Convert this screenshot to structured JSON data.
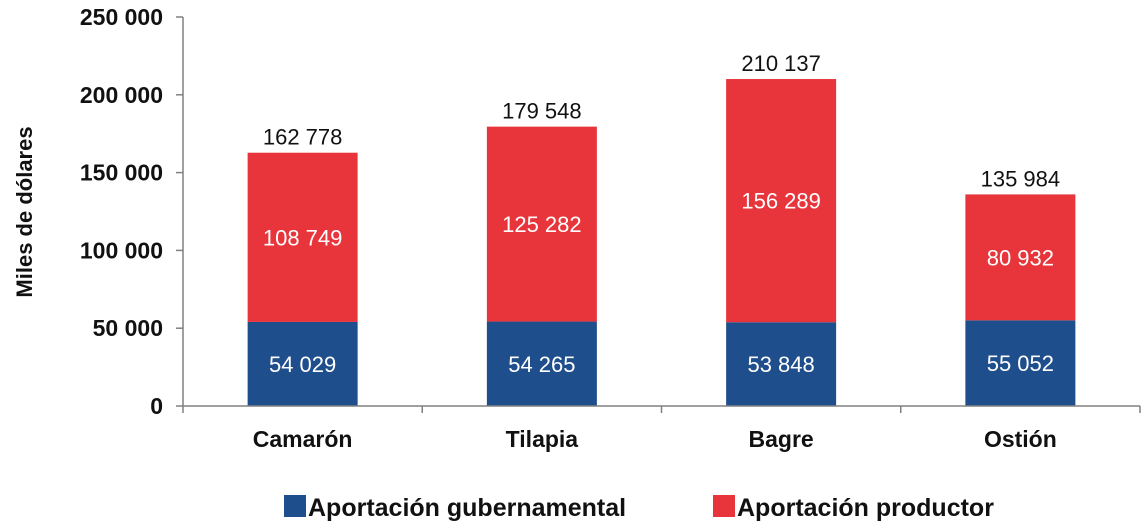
{
  "chart_data": {
    "type": "bar",
    "stacked": true,
    "categories": [
      "Camarón",
      "Tilapia",
      "Bagre",
      "Ostión"
    ],
    "series": [
      {
        "name": "Aportación gubernamental",
        "color": "#1f4e8c",
        "values": [
          54029,
          54265,
          53848,
          55052
        ],
        "labels": [
          "54 029",
          "54 265",
          "53 848",
          "55 052"
        ]
      },
      {
        "name": "Aportación productor",
        "color": "#e8353b",
        "values": [
          108749,
          125282,
          156289,
          80932
        ],
        "labels": [
          "108 749",
          "125 282",
          "156 289",
          "80 932"
        ]
      }
    ],
    "totals": [
      162778,
      179548,
      210137,
      135984
    ],
    "total_labels": [
      "162 778",
      "179 548",
      "210 137",
      "135 984"
    ],
    "ylabel": "Miles de dólares",
    "xlabel": "",
    "ylim": [
      0,
      250000
    ],
    "yticks": [
      0,
      50000,
      100000,
      150000,
      200000,
      250000
    ],
    "ytick_labels": [
      "0",
      "50 000",
      "100 000",
      "150 000",
      "200 000",
      "250 000"
    ],
    "grid": false,
    "legend_position": "bottom"
  }
}
